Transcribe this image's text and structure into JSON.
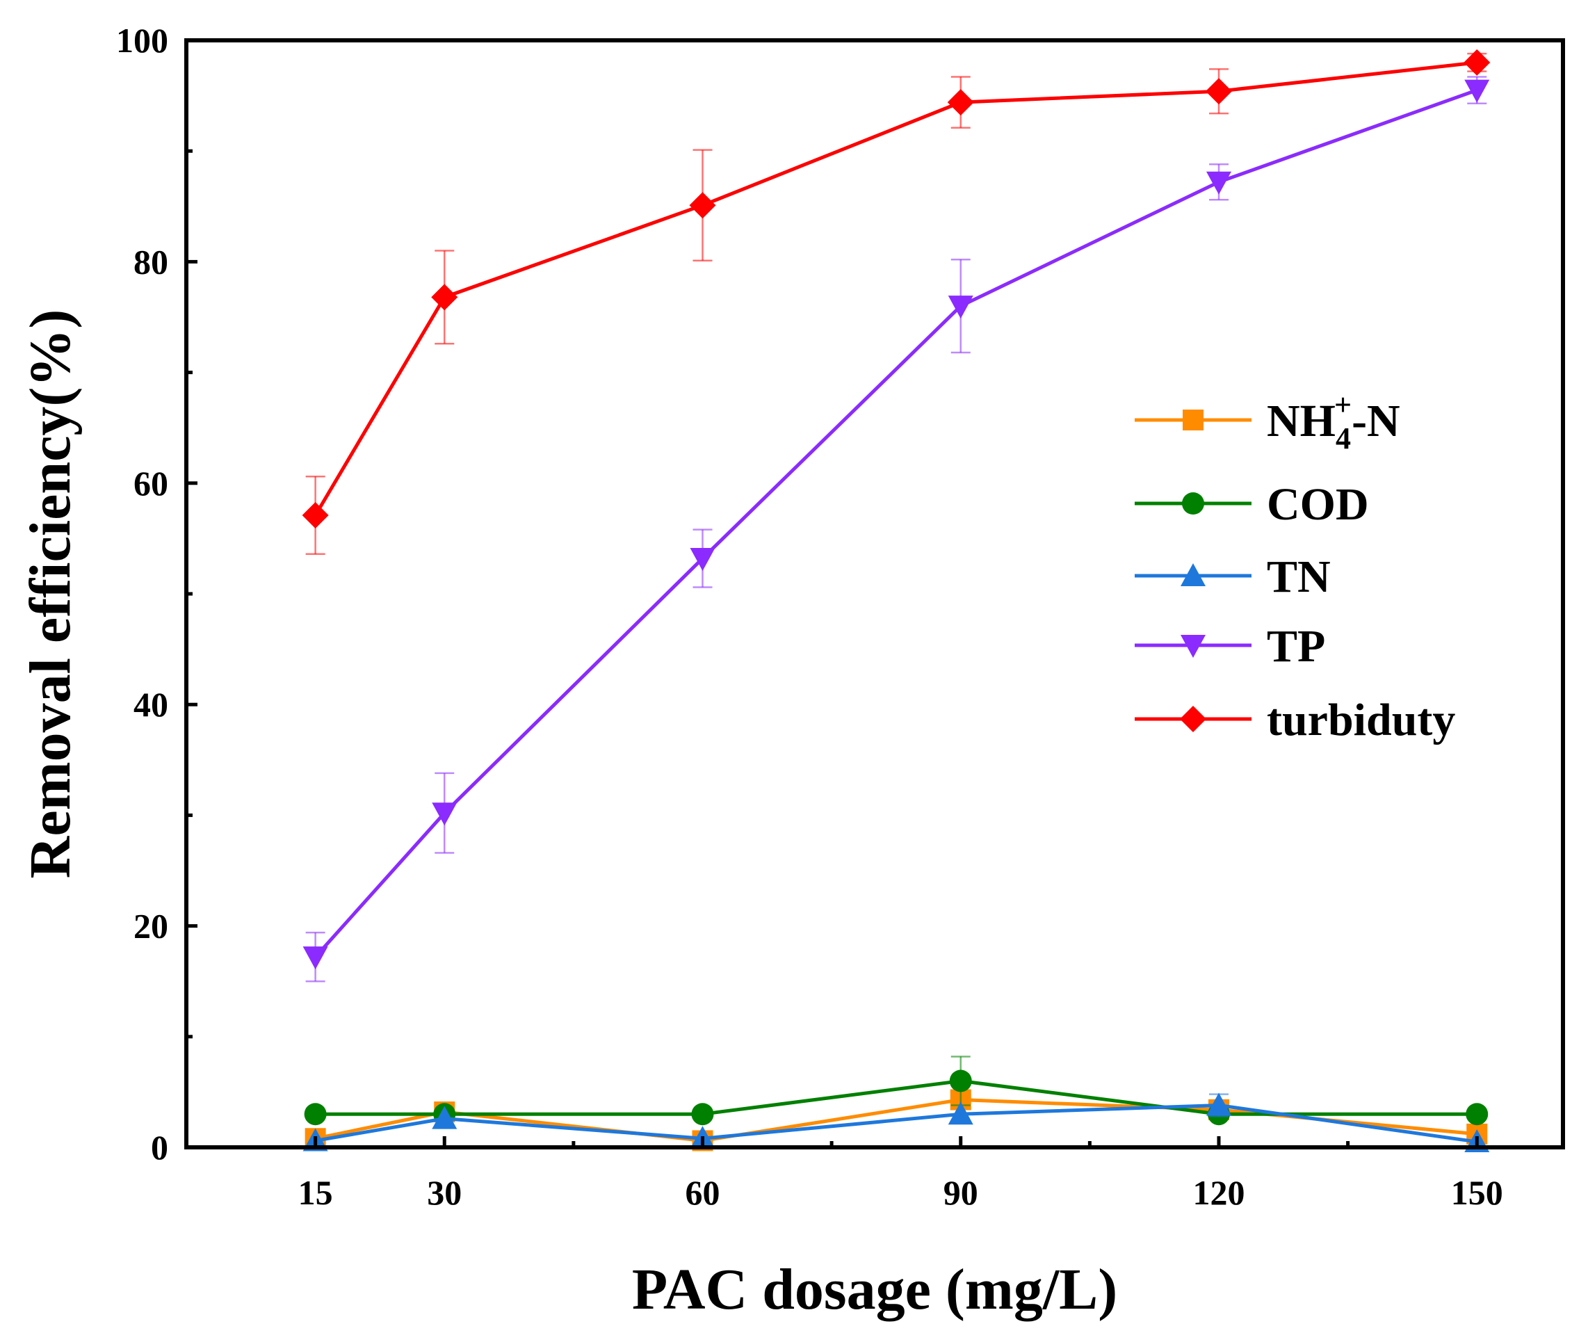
{
  "chart_data": {
    "type": "line",
    "title": "",
    "xlabel": "PAC dosage (mg/L)",
    "ylabel": "Removal efficiency(%)",
    "x": [
      15,
      30,
      60,
      90,
      120,
      150
    ],
    "x_tick_labels": [
      "15",
      "30",
      "60",
      "90",
      "120",
      "150"
    ],
    "xlim": [
      0,
      160
    ],
    "ylim": [
      0,
      100
    ],
    "y_ticks": [
      0,
      20,
      40,
      60,
      80,
      100
    ],
    "y_tick_labels": [
      "0",
      "20",
      "40",
      "60",
      "80",
      "100"
    ],
    "x_minor_ticks": [
      45,
      75,
      105,
      135
    ],
    "y_minor_ticks": [
      10,
      30,
      50,
      70,
      90
    ],
    "grid": false,
    "legend_position": "right",
    "series": [
      {
        "name": "NH4+-N",
        "legend": {
          "main": "NH",
          "sub": "4",
          "sup": "+",
          "tail": "-N"
        },
        "color": "#FF8C00",
        "marker": "square",
        "values": [
          0.8,
          3.2,
          0.6,
          4.3,
          3.4,
          1.2
        ],
        "errors": [
          0,
          0,
          0,
          0,
          0,
          0
        ]
      },
      {
        "name": "COD",
        "color": "#008000",
        "marker": "circle",
        "values": [
          3.0,
          3.0,
          3.0,
          6.0,
          3.0,
          3.0
        ],
        "errors": [
          0,
          0,
          0,
          2.2,
          0,
          0
        ]
      },
      {
        "name": "TN",
        "color": "#1E78DC",
        "marker": "triangle-up",
        "values": [
          0.6,
          2.6,
          0.8,
          3.0,
          3.8,
          0.5
        ],
        "errors": [
          0,
          0,
          0,
          0,
          1.0,
          0
        ]
      },
      {
        "name": "TP",
        "color": "#8B2BFF",
        "marker": "triangle-down",
        "values": [
          17.2,
          30.2,
          53.2,
          76.0,
          87.2,
          95.5
        ],
        "errors": [
          2.2,
          3.6,
          2.6,
          4.2,
          1.6,
          1.2
        ]
      },
      {
        "name": "turbiduty",
        "color": "#FF0000",
        "marker": "diamond",
        "values": [
          57.1,
          76.8,
          85.1,
          94.4,
          95.4,
          98.0
        ],
        "errors": [
          3.5,
          4.2,
          5.0,
          2.3,
          2.0,
          0.8
        ]
      }
    ]
  }
}
